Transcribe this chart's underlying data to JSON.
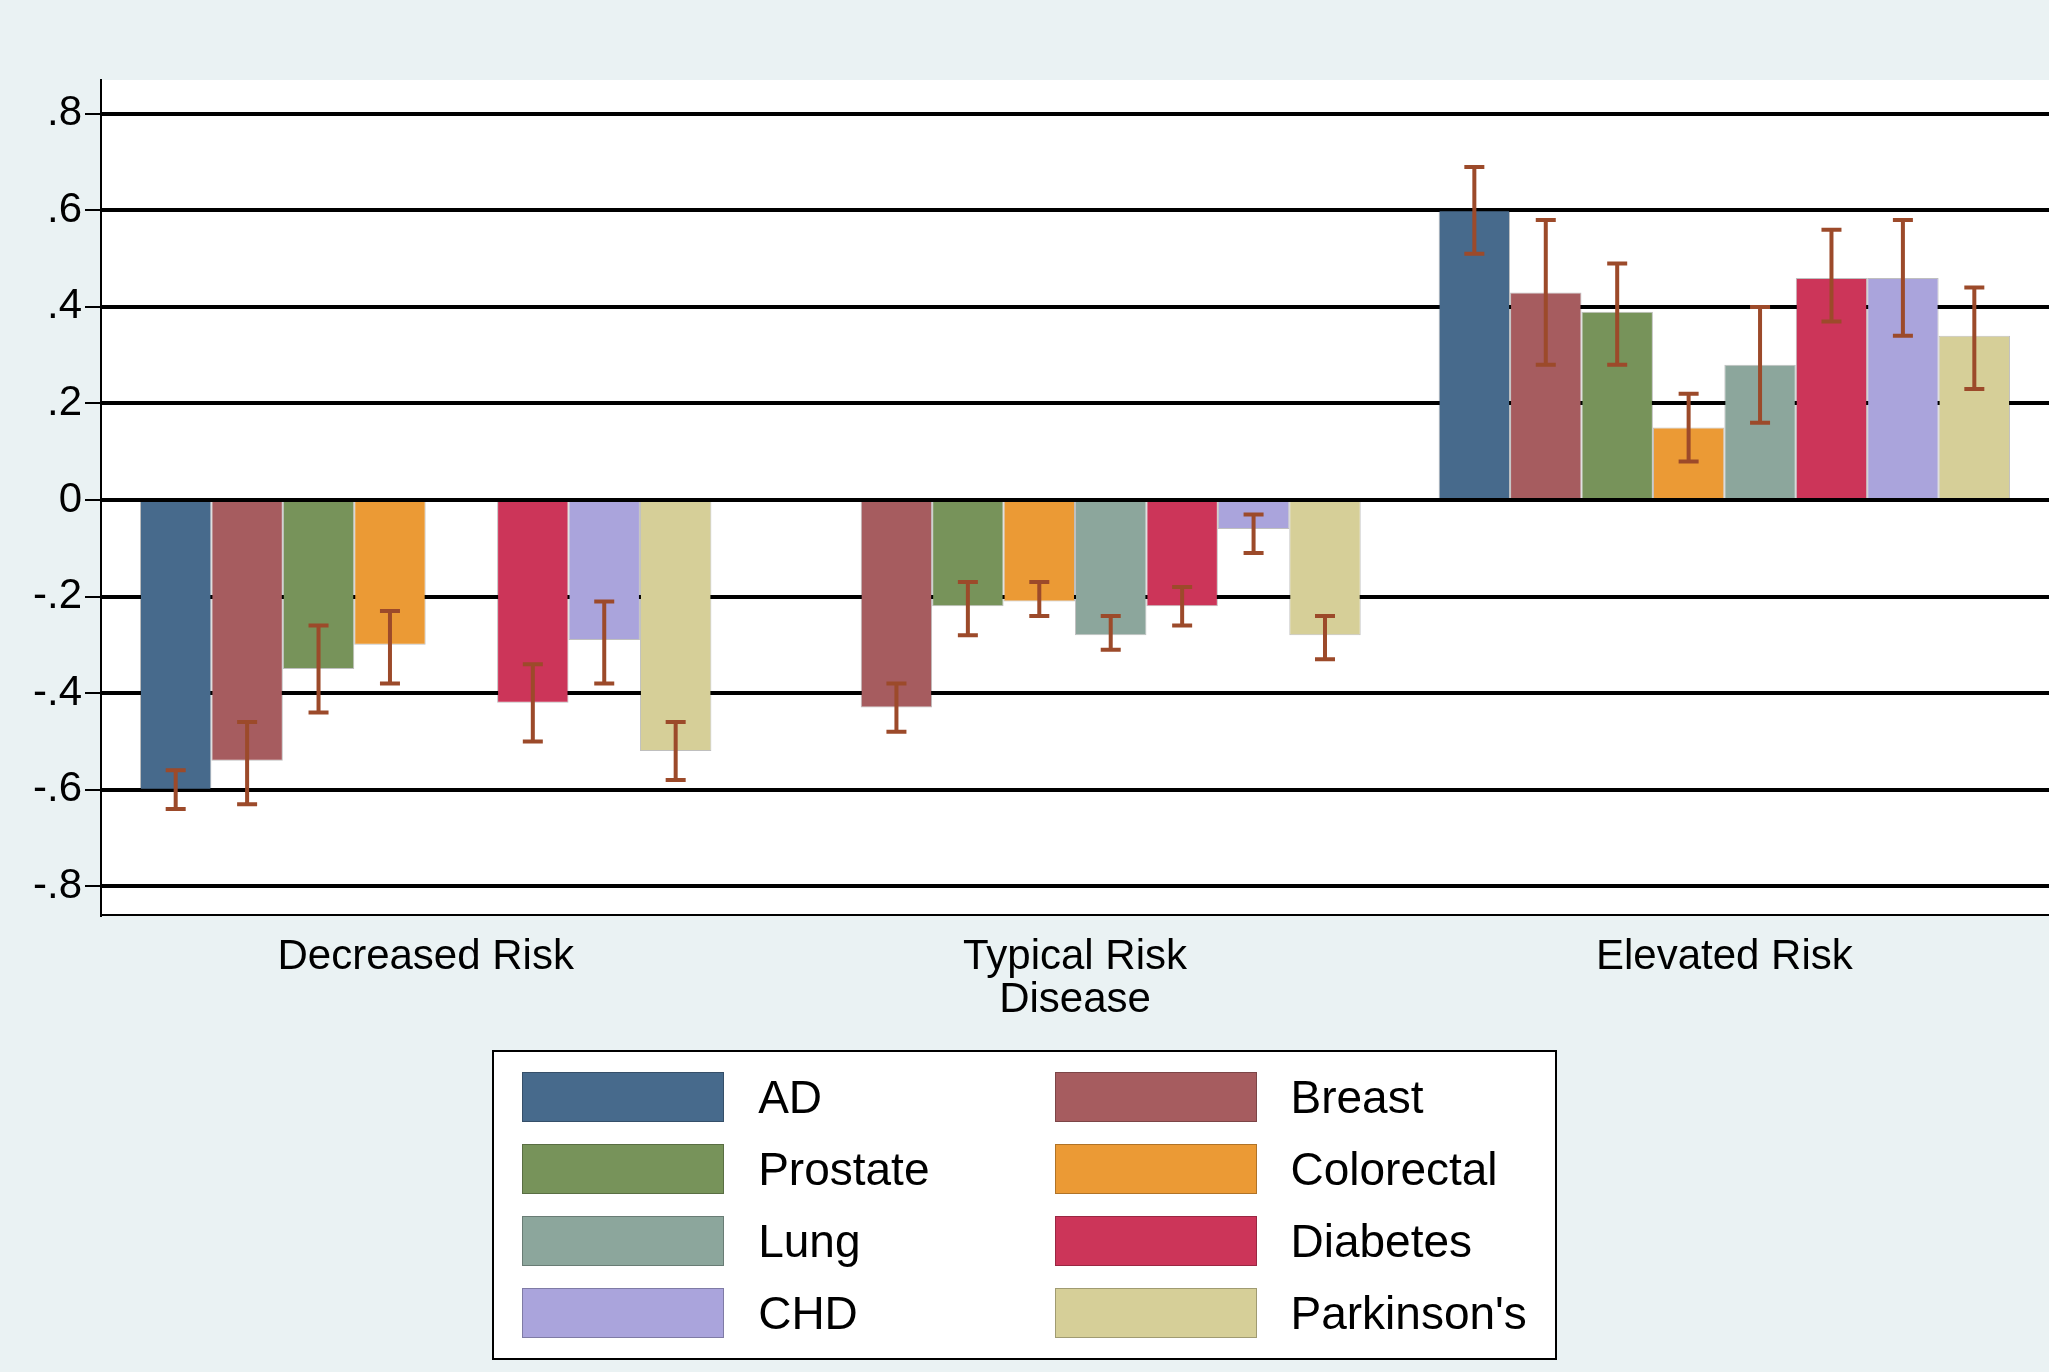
{
  "chart_data": {
    "type": "bar",
    "xlabel": "Disease",
    "categories": [
      "Decreased Risk",
      "Typical Risk",
      "Elevated Risk"
    ],
    "ylim": [
      -0.86,
      0.87
    ],
    "yticks": [
      {
        "value": -0.8,
        "label": "-.8"
      },
      {
        "value": -0.6,
        "label": "-.6"
      },
      {
        "value": -0.4,
        "label": "-.4"
      },
      {
        "value": -0.2,
        "label": "-.2"
      },
      0,
      {
        "value": 0.2,
        "label": ".2"
      },
      {
        "value": 0.4,
        "label": ".4"
      },
      {
        "value": 0.6,
        "label": ".6"
      },
      {
        "value": 0.8,
        "label": ".8"
      }
    ],
    "grid": "y",
    "legend": "bottom",
    "series": [
      {
        "name": "AD",
        "color": "#476a8c",
        "values": [
          -0.6,
          null,
          0.6
        ],
        "errors": [
          [
            -0.64,
            -0.56
          ],
          null,
          [
            0.51,
            0.69
          ]
        ]
      },
      {
        "name": "Breast",
        "color": "#a65c5f",
        "values": [
          -0.54,
          -0.43,
          0.43
        ],
        "errors": [
          [
            -0.63,
            -0.46
          ],
          [
            -0.48,
            -0.38
          ],
          [
            0.28,
            0.58
          ]
        ]
      },
      {
        "name": "Prostate",
        "color": "#77935a",
        "values": [
          -0.35,
          -0.22,
          0.39
        ],
        "errors": [
          [
            -0.44,
            -0.26
          ],
          [
            -0.28,
            -0.17
          ],
          [
            0.28,
            0.49
          ]
        ]
      },
      {
        "name": "Colorectal",
        "color": "#eb9a35",
        "values": [
          -0.3,
          -0.21,
          0.15
        ],
        "errors": [
          [
            -0.38,
            -0.23
          ],
          [
            -0.24,
            -0.17
          ],
          [
            0.08,
            0.22
          ]
        ]
      },
      {
        "name": "Lung",
        "color": "#8ca69c",
        "values": [
          null,
          -0.28,
          0.28
        ],
        "errors": [
          null,
          [
            -0.31,
            -0.24
          ],
          [
            0.16,
            0.4
          ]
        ]
      },
      {
        "name": "Diabetes",
        "color": "#cc3559",
        "values": [
          -0.42,
          -0.22,
          0.46
        ],
        "errors": [
          [
            -0.5,
            -0.34
          ],
          [
            -0.26,
            -0.18
          ],
          [
            0.37,
            0.56
          ]
        ]
      },
      {
        "name": "CHD",
        "color": "#aaa4dc",
        "values": [
          -0.29,
          -0.06,
          0.46
        ],
        "errors": [
          [
            -0.38,
            -0.21
          ],
          [
            -0.11,
            -0.03
          ],
          [
            0.34,
            0.58
          ]
        ]
      },
      {
        "name": "Parkinson's",
        "color": "#d6cf98",
        "values": [
          -0.52,
          -0.28,
          0.34
        ],
        "errors": [
          [
            -0.58,
            -0.46
          ],
          [
            -0.33,
            -0.24
          ],
          [
            0.23,
            0.44
          ]
        ]
      }
    ]
  }
}
